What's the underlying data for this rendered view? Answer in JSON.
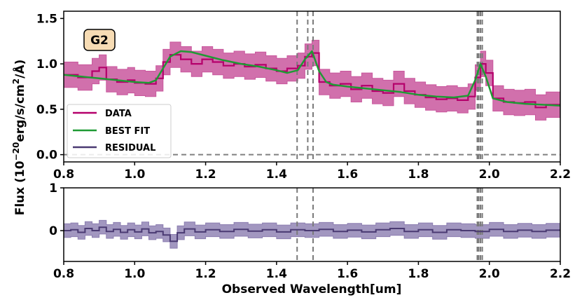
{
  "chart_data": {
    "type": "line",
    "badge": "G2",
    "xlabel": "Observed Wavelength[um]",
    "ylabel_parts": [
      "Flux (10",
      "−20",
      "erg/s/cm",
      "2",
      "/Å)"
    ],
    "xlim": [
      0.8,
      2.2
    ],
    "x_ticks": [
      "0.8",
      "1.0",
      "1.2",
      "1.4",
      "1.6",
      "1.8",
      "2.0",
      "2.2"
    ],
    "top_panel": {
      "ylim": [
        -0.08,
        1.58
      ],
      "y_ticks": [
        {
          "value": 0.0,
          "label": "0.0"
        },
        {
          "value": 0.5,
          "label": "0.5"
        },
        {
          "value": 1.0,
          "label": "1.0"
        },
        {
          "value": 1.5,
          "label": "1.5"
        }
      ],
      "reference_line_y": 0.0,
      "legend": {
        "placement": "lower-left",
        "entries": [
          "DATA",
          "BEST FIT",
          "RESIDUAL"
        ]
      },
      "series": [
        {
          "name": "DATA",
          "color": "#b5006b",
          "band_color": "#c9579d",
          "x": [
            0.8,
            0.84,
            0.88,
            0.9,
            0.92,
            0.95,
            0.98,
            1.0,
            1.03,
            1.06,
            1.08,
            1.1,
            1.13,
            1.16,
            1.19,
            1.22,
            1.25,
            1.28,
            1.31,
            1.34,
            1.37,
            1.4,
            1.43,
            1.46,
            1.48,
            1.5,
            1.52,
            1.55,
            1.58,
            1.61,
            1.64,
            1.67,
            1.7,
            1.73,
            1.76,
            1.79,
            1.82,
            1.85,
            1.88,
            1.91,
            1.94,
            1.96,
            1.975,
            1.99,
            2.01,
            2.04,
            2.07,
            2.1,
            2.13,
            2.16,
            2.2
          ],
          "y": [
            0.88,
            0.85,
            0.92,
            0.96,
            0.83,
            0.8,
            0.82,
            0.79,
            0.78,
            0.84,
            1.02,
            1.1,
            1.05,
            1.0,
            1.05,
            1.02,
            0.98,
            1.0,
            0.97,
            0.99,
            0.95,
            0.92,
            0.95,
            0.98,
            1.08,
            1.12,
            0.8,
            0.76,
            0.78,
            0.72,
            0.76,
            0.7,
            0.68,
            0.78,
            0.7,
            0.66,
            0.63,
            0.61,
            0.62,
            0.6,
            0.64,
            0.85,
            1.0,
            0.9,
            0.62,
            0.58,
            0.57,
            0.58,
            0.52,
            0.55,
            0.54
          ],
          "err": 0.14
        },
        {
          "name": "BEST FIT",
          "color": "#1f9a34",
          "x": [
            0.8,
            0.85,
            0.9,
            0.95,
            1.0,
            1.04,
            1.06,
            1.08,
            1.1,
            1.13,
            1.16,
            1.2,
            1.25,
            1.3,
            1.35,
            1.4,
            1.43,
            1.46,
            1.48,
            1.5,
            1.52,
            1.54,
            1.56,
            1.6,
            1.65,
            1.7,
            1.75,
            1.8,
            1.85,
            1.9,
            1.94,
            1.96,
            1.975,
            1.99,
            2.01,
            2.05,
            2.1,
            2.15,
            2.2
          ],
          "y": [
            0.88,
            0.86,
            0.84,
            0.82,
            0.8,
            0.79,
            0.82,
            0.95,
            1.08,
            1.14,
            1.13,
            1.09,
            1.04,
            1.0,
            0.97,
            0.93,
            0.9,
            0.93,
            1.05,
            1.14,
            0.92,
            0.8,
            0.77,
            0.75,
            0.73,
            0.71,
            0.69,
            0.66,
            0.64,
            0.63,
            0.65,
            0.82,
            1.0,
            0.86,
            0.62,
            0.58,
            0.56,
            0.55,
            0.54
          ]
        }
      ]
    },
    "bottom_panel": {
      "ylim": [
        -0.72,
        1.0
      ],
      "y_ticks": [
        {
          "value": 0,
          "label": "0"
        },
        {
          "value": 1,
          "label": "1"
        }
      ],
      "series": [
        {
          "name": "RESIDUAL",
          "color": "#4a3a72",
          "band_color": "#8b7db0",
          "x": [
            0.8,
            0.82,
            0.84,
            0.86,
            0.88,
            0.9,
            0.92,
            0.94,
            0.96,
            0.98,
            1.0,
            1.02,
            1.04,
            1.06,
            1.08,
            1.1,
            1.12,
            1.14,
            1.17,
            1.2,
            1.24,
            1.28,
            1.32,
            1.36,
            1.4,
            1.44,
            1.48,
            1.52,
            1.56,
            1.6,
            1.64,
            1.68,
            1.72,
            1.76,
            1.8,
            1.84,
            1.88,
            1.92,
            1.96,
            2.0,
            2.04,
            2.08,
            2.12,
            2.16,
            2.2
          ],
          "y": [
            0.0,
            0.02,
            -0.04,
            0.05,
            0.0,
            0.08,
            -0.02,
            0.03,
            -0.04,
            0.02,
            -0.03,
            0.04,
            -0.05,
            -0.02,
            -0.1,
            -0.25,
            -0.05,
            0.04,
            -0.03,
            0.02,
            -0.02,
            0.03,
            -0.01,
            0.02,
            -0.03,
            0.02,
            0.0,
            0.03,
            -0.02,
            0.01,
            -0.03,
            0.02,
            0.05,
            -0.02,
            0.02,
            -0.04,
            0.02,
            0.0,
            -0.02,
            0.03,
            -0.02,
            0.01,
            -0.02,
            0.01,
            0.0
          ],
          "err": 0.16
        }
      ]
    },
    "vertical_lines_x": [
      1.458,
      1.488,
      1.503,
      1.966,
      1.97,
      1.975,
      1.98
    ],
    "bottom_vertical_lines_x": [
      1.458,
      1.503,
      1.966,
      1.97,
      1.975,
      1.98
    ],
    "line_colors": {
      "reference": "#808080",
      "vlines": "#7a7a7a"
    }
  }
}
